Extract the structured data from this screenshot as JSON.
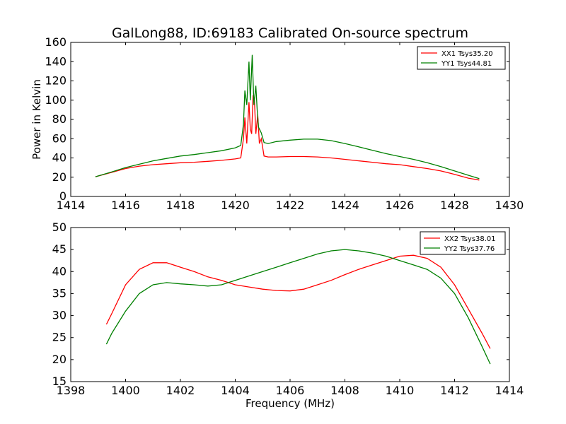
{
  "title": "GalLong88, ID:69183 Calibrated On-source spectrum",
  "chart_data": [
    {
      "type": "line",
      "title": "GalLong88, ID:69183 Calibrated On-source spectrum",
      "xlabel": "",
      "ylabel": "Power in Kelvin",
      "xlim": [
        1414,
        1430
      ],
      "ylim": [
        0,
        160
      ],
      "xticks": [
        1414,
        1416,
        1418,
        1420,
        1422,
        1424,
        1426,
        1428,
        1430
      ],
      "yticks": [
        0,
        20,
        40,
        60,
        80,
        100,
        120,
        140,
        160
      ],
      "grid": false,
      "legend_position": "top-right",
      "series": [
        {
          "name": "XX1 Tsys35.20",
          "color": "#ff0000",
          "points": [
            [
              1414.9,
              20.5
            ],
            [
              1415.5,
              25
            ],
            [
              1416,
              29
            ],
            [
              1416.5,
              31.5
            ],
            [
              1417,
              33
            ],
            [
              1417.5,
              34
            ],
            [
              1418,
              35
            ],
            [
              1418.5,
              35.5
            ],
            [
              1419,
              36.5
            ],
            [
              1419.5,
              37.5
            ],
            [
              1420,
              39
            ],
            [
              1420.2,
              40
            ],
            [
              1420.3,
              60
            ],
            [
              1420.35,
              82
            ],
            [
              1420.42,
              55
            ],
            [
              1420.5,
              98
            ],
            [
              1420.55,
              70
            ],
            [
              1420.6,
              65
            ],
            [
              1420.65,
              105
            ],
            [
              1420.7,
              100
            ],
            [
              1420.75,
              65
            ],
            [
              1420.82,
              85
            ],
            [
              1420.88,
              55
            ],
            [
              1420.95,
              60
            ],
            [
              1421.05,
              42
            ],
            [
              1421.2,
              41
            ],
            [
              1421.5,
              41
            ],
            [
              1422,
              41.5
            ],
            [
              1422.5,
              41.5
            ],
            [
              1423,
              41
            ],
            [
              1423.5,
              40
            ],
            [
              1424,
              38.5
            ],
            [
              1424.5,
              37
            ],
            [
              1425,
              35.5
            ],
            [
              1425.5,
              34
            ],
            [
              1426,
              33
            ],
            [
              1426.5,
              31
            ],
            [
              1427,
              29
            ],
            [
              1427.5,
              26.5
            ],
            [
              1428,
              23
            ],
            [
              1428.5,
              19
            ],
            [
              1428.9,
              17
            ]
          ]
        },
        {
          "name": "YY1 Tsys44.81",
          "color": "#008000",
          "points": [
            [
              1414.9,
              20.5
            ],
            [
              1415.5,
              25.5
            ],
            [
              1416,
              30
            ],
            [
              1416.5,
              33.5
            ],
            [
              1417,
              37
            ],
            [
              1417.5,
              39.5
            ],
            [
              1418,
              42
            ],
            [
              1418.5,
              43.5
            ],
            [
              1419,
              45.5
            ],
            [
              1419.5,
              47.5
            ],
            [
              1420,
              50.5
            ],
            [
              1420.2,
              53
            ],
            [
              1420.3,
              75
            ],
            [
              1420.35,
              110
            ],
            [
              1420.42,
              95
            ],
            [
              1420.5,
              140
            ],
            [
              1420.55,
              100
            ],
            [
              1420.62,
              147
            ],
            [
              1420.68,
              95
            ],
            [
              1420.75,
              115
            ],
            [
              1420.8,
              90
            ],
            [
              1420.85,
              72
            ],
            [
              1420.95,
              66
            ],
            [
              1421.05,
              56
            ],
            [
              1421.2,
              55
            ],
            [
              1421.5,
              57
            ],
            [
              1422,
              58.5
            ],
            [
              1422.5,
              59.5
            ],
            [
              1423,
              59.5
            ],
            [
              1423.5,
              58
            ],
            [
              1424,
              55
            ],
            [
              1424.5,
              51.5
            ],
            [
              1425,
              48
            ],
            [
              1425.5,
              44.5
            ],
            [
              1426,
              41.5
            ],
            [
              1426.5,
              38.5
            ],
            [
              1427,
              35
            ],
            [
              1427.5,
              31
            ],
            [
              1428,
              26.5
            ],
            [
              1428.5,
              22
            ],
            [
              1428.9,
              18.5
            ]
          ]
        }
      ]
    },
    {
      "type": "line",
      "title": "",
      "xlabel": "Frequency (MHz)",
      "ylabel": "",
      "xlim": [
        1398,
        1414
      ],
      "ylim": [
        15,
        50
      ],
      "xticks": [
        1398,
        1400,
        1402,
        1404,
        1406,
        1408,
        1410,
        1412,
        1414
      ],
      "yticks": [
        15,
        20,
        25,
        30,
        35,
        40,
        45,
        50
      ],
      "grid": false,
      "legend_position": "top-right",
      "series": [
        {
          "name": "XX2 Tsys38.01",
          "color": "#ff0000",
          "points": [
            [
              1399.3,
              28
            ],
            [
              1399.5,
              30.5
            ],
            [
              1400,
              37
            ],
            [
              1400.5,
              40.5
            ],
            [
              1401,
              42
            ],
            [
              1401.5,
              42
            ],
            [
              1402,
              41
            ],
            [
              1402.5,
              40
            ],
            [
              1403,
              38.8
            ],
            [
              1403.5,
              38
            ],
            [
              1404,
              37
            ],
            [
              1404.5,
              36.5
            ],
            [
              1405,
              36
            ],
            [
              1405.5,
              35.7
            ],
            [
              1406,
              35.6
            ],
            [
              1406.5,
              36
            ],
            [
              1407,
              37
            ],
            [
              1407.5,
              38
            ],
            [
              1408,
              39.3
            ],
            [
              1408.5,
              40.5
            ],
            [
              1409,
              41.5
            ],
            [
              1409.5,
              42.5
            ],
            [
              1410,
              43.5
            ],
            [
              1410.5,
              43.7
            ],
            [
              1411,
              43
            ],
            [
              1411.5,
              41
            ],
            [
              1412,
              37
            ],
            [
              1412.5,
              31.5
            ],
            [
              1413,
              26
            ],
            [
              1413.3,
              22.5
            ]
          ]
        },
        {
          "name": "YY2 Tsys37.76",
          "color": "#008000",
          "points": [
            [
              1399.3,
              23.5
            ],
            [
              1399.5,
              26
            ],
            [
              1400,
              31
            ],
            [
              1400.5,
              35
            ],
            [
              1401,
              37
            ],
            [
              1401.5,
              37.5
            ],
            [
              1402,
              37.2
            ],
            [
              1402.5,
              37
            ],
            [
              1403,
              36.7
            ],
            [
              1403.5,
              37
            ],
            [
              1404,
              38
            ],
            [
              1404.5,
              39
            ],
            [
              1405,
              40
            ],
            [
              1405.5,
              41
            ],
            [
              1406,
              42
            ],
            [
              1406.5,
              43
            ],
            [
              1407,
              44
            ],
            [
              1407.5,
              44.7
            ],
            [
              1408,
              45
            ],
            [
              1408.5,
              44.7
            ],
            [
              1409,
              44.2
            ],
            [
              1409.5,
              43.5
            ],
            [
              1410,
              42.5
            ],
            [
              1410.5,
              41.5
            ],
            [
              1411,
              40.5
            ],
            [
              1411.5,
              38.5
            ],
            [
              1412,
              35
            ],
            [
              1412.5,
              29.5
            ],
            [
              1413,
              23
            ],
            [
              1413.3,
              19
            ]
          ]
        }
      ]
    }
  ]
}
